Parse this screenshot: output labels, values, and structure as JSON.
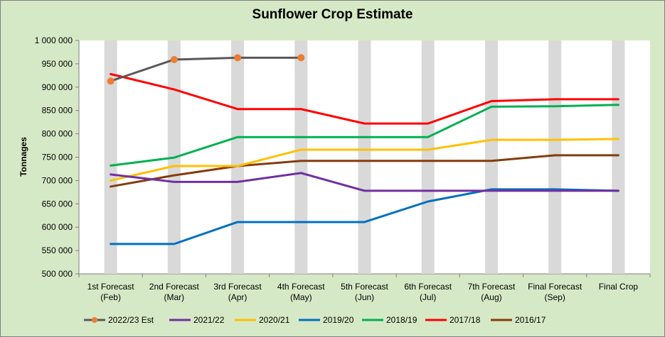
{
  "chart_data": {
    "type": "line",
    "title": "Sunflower Crop Estimate",
    "xlabel": "",
    "ylabel": "Tonnages",
    "ylim": [
      500000,
      1000000
    ],
    "ytick_step": 50000,
    "ytick_labels": [
      "500 000",
      "550 000",
      "600 000",
      "650 000",
      "700 000",
      "750 000",
      "800 000",
      "850 000",
      "900 000",
      "950 000",
      "1 000 000"
    ],
    "categories": [
      [
        "1st Forecast",
        "(Feb)"
      ],
      [
        "2nd Forecast",
        "(Mar)"
      ],
      [
        "3rd Forecast",
        "(Apr)"
      ],
      [
        "4th Forecast",
        "(May)"
      ],
      [
        "5th Forecast",
        "(Jun)"
      ],
      [
        "6th Forecast",
        "(Jul)"
      ],
      [
        "7th Forecast",
        "(Aug)"
      ],
      [
        "Final Forecast",
        "(Sep)"
      ],
      [
        "Final Crop",
        ""
      ]
    ],
    "grid": "vertical bands",
    "band_color": "#d9d9d9",
    "plot_background": "#ffffff",
    "legend_position": "bottom",
    "series": [
      {
        "name": "2022/23 Est",
        "color": "#595959",
        "marker": "circle",
        "marker_color": "#ed7d31",
        "values": [
          913000,
          959000,
          963000,
          963000,
          null,
          null,
          null,
          null,
          null
        ]
      },
      {
        "name": "2021/22",
        "color": "#7030a0",
        "values": [
          713000,
          697000,
          697000,
          716000,
          678000,
          678000,
          678000,
          678000,
          678000
        ]
      },
      {
        "name": "2020/21",
        "color": "#ffc000",
        "values": [
          700000,
          731000,
          731000,
          766000,
          766000,
          766000,
          787000,
          787000,
          789000
        ]
      },
      {
        "name": "2019/20",
        "color": "#0070c0",
        "values": [
          564000,
          564000,
          611000,
          611000,
          611000,
          655000,
          681000,
          681000,
          678000
        ]
      },
      {
        "name": "2018/19",
        "color": "#00b050",
        "values": [
          732000,
          749000,
          793000,
          793000,
          793000,
          793000,
          858000,
          859000,
          862000
        ]
      },
      {
        "name": "2017/18",
        "color": "#ff0000",
        "values": [
          928000,
          895000,
          853000,
          853000,
          822000,
          822000,
          870000,
          874000,
          874000
        ]
      },
      {
        "name": "2016/17",
        "color": "#843c0c",
        "values": [
          687000,
          711000,
          731000,
          742000,
          742000,
          742000,
          742000,
          754000,
          754000
        ]
      }
    ]
  }
}
